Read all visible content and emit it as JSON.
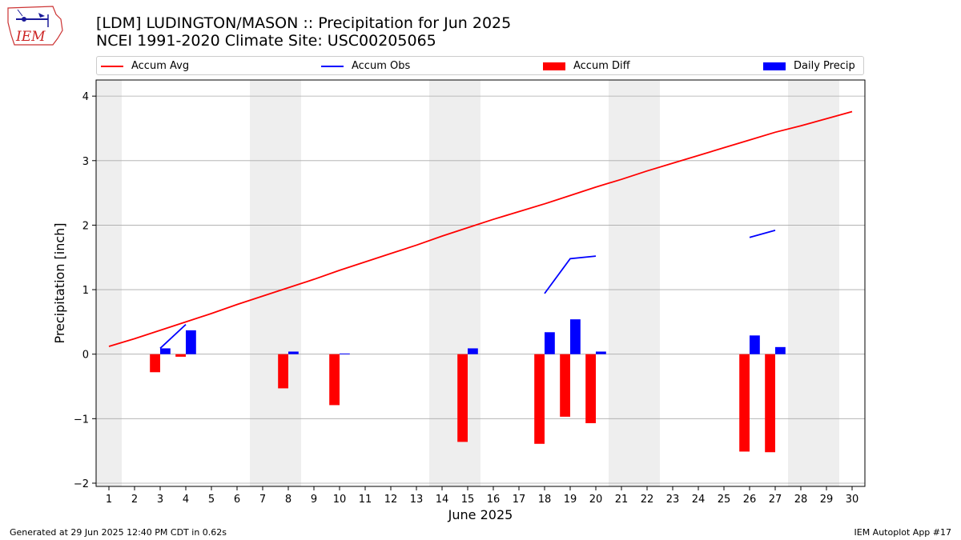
{
  "header": {
    "title_line1": "[LDM] LUDINGTON/MASON :: Precipitation for Jun 2025",
    "title_line2": "NCEI 1991-2020 Climate Site: USC00205065",
    "logo_text": "IEM"
  },
  "legend": {
    "accum_avg": "Accum Avg",
    "accum_obs": "Accum Obs",
    "accum_diff": "Accum Diff",
    "daily_precip": "Daily Precip"
  },
  "footer": {
    "left": "Generated at 29 Jun 2025 12:40 PM CDT in 0.62s",
    "right": "IEM Autoplot App #17"
  },
  "colors": {
    "accum_avg": "#ff0000",
    "accum_obs": "#0000ff",
    "accum_diff": "#ff0000",
    "daily_precip": "#0000ff",
    "weekend_shade": "#eeeeee",
    "grid": "#aaaaaa"
  },
  "chart_data": {
    "type": "bar",
    "xlabel": "June 2025",
    "ylabel": "Precipitation [inch]",
    "xlim": [
      0.5,
      30.5
    ],
    "ylim": [
      -2.05,
      4.25
    ],
    "yticks": [
      -2,
      -1,
      0,
      1,
      2,
      3,
      4
    ],
    "ytick_labels": [
      "−2",
      "−1",
      "0",
      "1",
      "2",
      "3",
      "4"
    ],
    "days": [
      1,
      2,
      3,
      4,
      5,
      6,
      7,
      8,
      9,
      10,
      11,
      12,
      13,
      14,
      15,
      16,
      17,
      18,
      19,
      20,
      21,
      22,
      23,
      24,
      25,
      26,
      27,
      28,
      29,
      30
    ],
    "weekend_days": [
      1,
      7,
      8,
      14,
      15,
      21,
      22,
      28,
      29
    ],
    "grid": "horizontal",
    "legend_position": "top",
    "series": [
      {
        "name": "Accum Avg",
        "kind": "line",
        "values": [
          0.12,
          0.24,
          0.37,
          0.5,
          0.63,
          0.77,
          0.9,
          1.03,
          1.16,
          1.3,
          1.43,
          1.56,
          1.69,
          1.83,
          1.96,
          2.09,
          2.21,
          2.33,
          2.46,
          2.59,
          2.71,
          2.84,
          2.96,
          3.08,
          3.2,
          3.32,
          3.44,
          3.54,
          3.65,
          3.76
        ]
      },
      {
        "name": "Accum Obs",
        "kind": "line",
        "values": [
          null,
          null,
          0.09,
          0.46,
          null,
          null,
          null,
          null,
          null,
          null,
          null,
          null,
          null,
          null,
          null,
          null,
          null,
          0.94,
          1.48,
          1.52,
          null,
          null,
          null,
          null,
          null,
          1.81,
          1.92,
          null,
          null,
          null
        ]
      },
      {
        "name": "Accum Diff",
        "kind": "bar",
        "values": [
          null,
          null,
          -0.28,
          -0.04,
          null,
          null,
          null,
          -0.53,
          null,
          -0.79,
          null,
          null,
          null,
          null,
          -1.36,
          null,
          null,
          -1.39,
          -0.97,
          -1.07,
          null,
          null,
          null,
          null,
          null,
          -1.51,
          -1.52,
          null,
          null,
          null
        ]
      },
      {
        "name": "Daily Precip",
        "kind": "bar",
        "values": [
          null,
          null,
          0.09,
          0.37,
          null,
          null,
          null,
          0.04,
          null,
          0.01,
          null,
          null,
          null,
          null,
          0.09,
          null,
          null,
          0.34,
          0.54,
          0.04,
          null,
          null,
          null,
          null,
          null,
          0.29,
          0.11,
          null,
          null,
          null
        ]
      }
    ]
  }
}
